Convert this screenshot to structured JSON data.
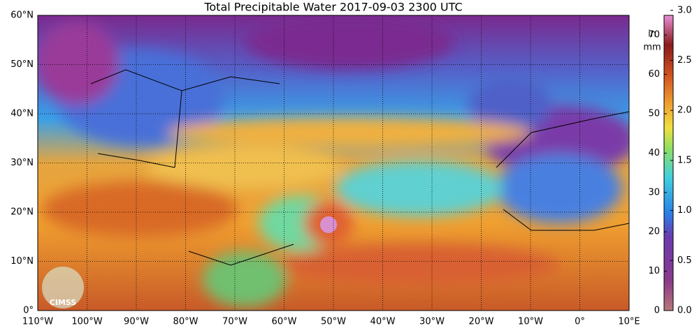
{
  "title": "Total Precipitable Water  2017-09-03 2300 UTC",
  "lat_labels": [
    "60°N",
    "50°N",
    "40°N",
    "30°N",
    "20°N",
    "10°N",
    "0°"
  ],
  "lon_labels": [
    "110°W",
    "100°W",
    "90°W",
    "80°W",
    "70°W",
    "60°W",
    "50°W",
    "40°W",
    "30°W",
    "20°W",
    "10°W",
    "0°",
    "10°E"
  ],
  "colorbar": {
    "unit_mm": "mm",
    "unit_in": "in",
    "mm_lim": [
      0,
      75
    ],
    "mm_ticks": [
      0,
      10,
      20,
      30,
      40,
      50,
      60,
      70
    ],
    "in_lim": [
      0,
      2.95
    ],
    "in_ticks": [
      {
        "value": 0,
        "label": "0.0"
      },
      {
        "value": 0.5,
        "label": "0.5"
      },
      {
        "value": 1,
        "label": "1.0"
      },
      {
        "value": 1.5,
        "label": "1.5"
      },
      {
        "value": 2,
        "label": "2.0"
      },
      {
        "value": 2.5,
        "label": "2.5"
      },
      {
        "value": 3,
        "label": "3.0"
      }
    ]
  },
  "logo": "CIMSS"
}
